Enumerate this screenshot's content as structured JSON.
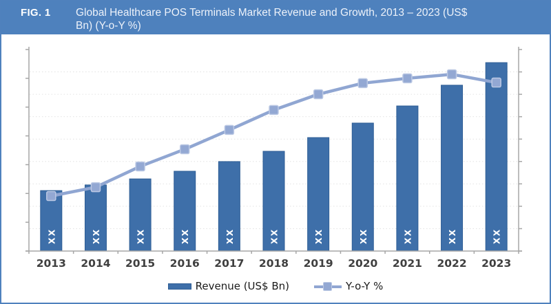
{
  "header": {
    "fig_label": "FIG. 1",
    "title_line1": "Global Healthcare POS Terminals Market Revenue and Growth, 2013 – 2023 (US$",
    "title_line2": "Bn) (Y-o-Y %)"
  },
  "legend": {
    "revenue_label": "Revenue (US$ Bn)",
    "yoy_label": "Y-o-Y %"
  },
  "colors": {
    "header_bg": "#4E81BD",
    "frame_border": "#4F81BD",
    "title_text": "#EDF2FA",
    "bar_fill": "#3E6FA9",
    "bar_border": "#2F5E95",
    "bar_label_text": "#FFFFFF",
    "line": "#90A6D2",
    "marker_fill": "#93A8D3",
    "marker_border": "#BCC9E4",
    "axis": "#A6A6A6",
    "grid": "#E2E2E2",
    "year_label": "#3F3F3F",
    "legend_text": "#1A1A1A"
  },
  "chart_data": {
    "type": "bar",
    "subtype": "combo-bar-line-dual-axis",
    "title": "Global Healthcare POS Terminals Market Revenue and Growth, 2013 – 2023 (US$ Bn) (Y-o-Y %)",
    "categories": [
      "2013",
      "2014",
      "2015",
      "2016",
      "2017",
      "2018",
      "2019",
      "2020",
      "2021",
      "2022",
      "2023"
    ],
    "series": [
      {
        "name": "Revenue (US$ Bn)",
        "type": "bar",
        "axis": "left",
        "data_labels": [
          "XX",
          "XX",
          "XX",
          "XX",
          "XX",
          "XX",
          "XX",
          "XX",
          "XX",
          "XX",
          "XX"
        ],
        "values_pct_of_axis": [
          30.0,
          32.8,
          35.8,
          39.6,
          44.4,
          49.5,
          56.3,
          63.5,
          72.0,
          82.3,
          93.5
        ]
      },
      {
        "name": "Y-o-Y %",
        "type": "line",
        "axis": "right",
        "values_pct_of_axis": [
          27.3,
          31.7,
          42.0,
          50.5,
          60.1,
          70.0,
          77.8,
          83.3,
          85.7,
          87.7,
          83.6
        ]
      }
    ],
    "xlabel": "",
    "ylabel": "",
    "axes": {
      "left": {
        "tick_count": 8,
        "tick_labels_shown": false
      },
      "right": {
        "tick_count": 10,
        "tick_labels_shown": false
      }
    },
    "grid": "faint dotted horizontal gridlines",
    "legend_position": "bottom",
    "note": "Numeric values are masked as XX on the chart; values_pct_of_axis are pixel-estimated relative heights (0-100 of plot height)."
  }
}
